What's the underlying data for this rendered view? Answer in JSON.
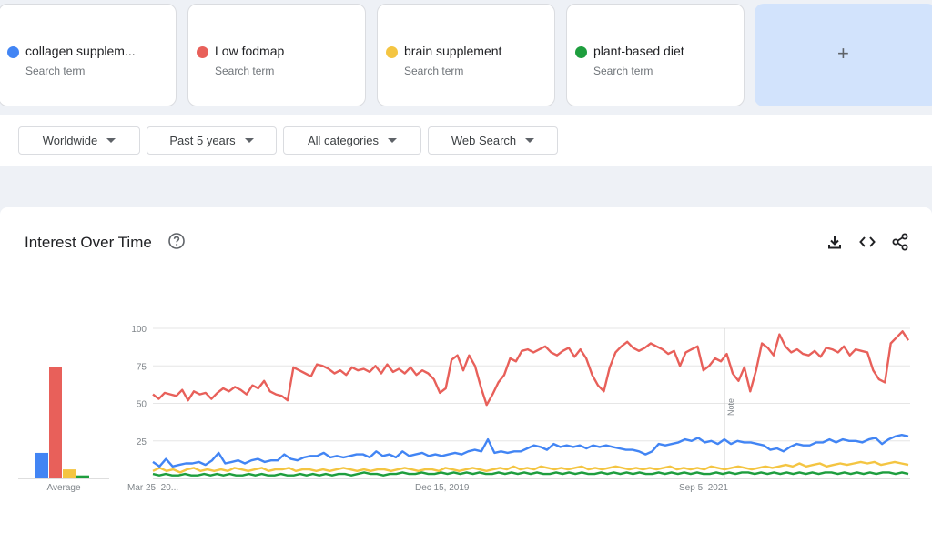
{
  "terms": [
    {
      "name": "collagen supplem...",
      "sub": "Search term",
      "color": "#4285f4"
    },
    {
      "name": "Low fodmap",
      "sub": "Search term",
      "color": "#e8605a"
    },
    {
      "name": "brain supplement",
      "sub": "Search term",
      "color": "#f4c542"
    },
    {
      "name": "plant-based diet",
      "sub": "Search term",
      "color": "#1e9e3e"
    }
  ],
  "add_term": {
    "label": "+"
  },
  "filters": {
    "region": "Worldwide",
    "time": "Past 5 years",
    "category": "All categories",
    "search_type": "Web Search"
  },
  "panel": {
    "title": "Interest Over Time",
    "icons": [
      "help-icon",
      "download-icon",
      "embed-icon",
      "share-icon"
    ]
  },
  "chart_data": {
    "type": "line",
    "y_ticks": [
      25,
      50,
      75,
      100
    ],
    "ylim": [
      0,
      100
    ],
    "x_tick_labels": [
      "Mar 25, 20...",
      "Dec 15, 2019",
      "Sep 5, 2021"
    ],
    "note_label": "Note",
    "grid": true,
    "average": {
      "label": "Average",
      "values": [
        17,
        74,
        6,
        2
      ],
      "colors": [
        "#4285f4",
        "#e8605a",
        "#f4c542",
        "#1e9e3e"
      ]
    },
    "series": [
      {
        "key": "collagen",
        "color": "#4285f4",
        "values": [
          11,
          8,
          13,
          8,
          9,
          10,
          10,
          11,
          9,
          12,
          17,
          10,
          11,
          12,
          10,
          12,
          13,
          11,
          12,
          12,
          16,
          13,
          12,
          14,
          15,
          15,
          17,
          14,
          15,
          14,
          15,
          16,
          16,
          14,
          18,
          15,
          16,
          14,
          18,
          15,
          16,
          17,
          15,
          16,
          15,
          16,
          17,
          16,
          18,
          19,
          18,
          26,
          17,
          18,
          17,
          18,
          18,
          20,
          22,
          21,
          19,
          23,
          21,
          22,
          21,
          22,
          20,
          22,
          21,
          22,
          21,
          20,
          19,
          19,
          18,
          16,
          18,
          23,
          22,
          23,
          24,
          26,
          25,
          27,
          24,
          25,
          23,
          26,
          23,
          25,
          24,
          24,
          23,
          22,
          19,
          20,
          18,
          21,
          23,
          22,
          22,
          24,
          24,
          26,
          24,
          26,
          25,
          25,
          24,
          26,
          27,
          23,
          26,
          28,
          29,
          28
        ]
      },
      {
        "key": "lowfodmap",
        "color": "#e8605a",
        "values": [
          56,
          53,
          57,
          56,
          55,
          59,
          52,
          58,
          56,
          57,
          53,
          57,
          60,
          58,
          61,
          59,
          56,
          62,
          60,
          65,
          58,
          56,
          55,
          52,
          74,
          72,
          70,
          68,
          76,
          75,
          73,
          70,
          72,
          69,
          74,
          72,
          73,
          71,
          75,
          70,
          76,
          71,
          73,
          70,
          74,
          69,
          72,
          70,
          66,
          57,
          60,
          79,
          82,
          72,
          82,
          75,
          61,
          49,
          56,
          64,
          69,
          80,
          78,
          85,
          86,
          84,
          86,
          88,
          84,
          82,
          85,
          87,
          81,
          86,
          80,
          69,
          62,
          58,
          74,
          84,
          88,
          91,
          87,
          85,
          87,
          90,
          88,
          86,
          83,
          85,
          75,
          84,
          86,
          88,
          72,
          75,
          80,
          78,
          83,
          70,
          65,
          74,
          58,
          72,
          90,
          87,
          82,
          96,
          88,
          84,
          86,
          83,
          82,
          85,
          81,
          87,
          86,
          84,
          88,
          82,
          86,
          85,
          84,
          72,
          66,
          64,
          90,
          94,
          98,
          92
        ]
      },
      {
        "key": "brain",
        "color": "#f4c542",
        "values": [
          5,
          7,
          5,
          6,
          4,
          6,
          7,
          5,
          6,
          5,
          6,
          5,
          7,
          6,
          5,
          6,
          7,
          5,
          6,
          6,
          7,
          5,
          6,
          6,
          5,
          6,
          5,
          6,
          7,
          6,
          5,
          6,
          5,
          6,
          6,
          5,
          6,
          7,
          6,
          5,
          6,
          6,
          5,
          7,
          6,
          5,
          6,
          7,
          6,
          5,
          6,
          7,
          6,
          8,
          6,
          7,
          6,
          8,
          7,
          6,
          7,
          6,
          7,
          8,
          6,
          7,
          6,
          7,
          8,
          7,
          6,
          7,
          6,
          7,
          6,
          7,
          8,
          6,
          7,
          6,
          7,
          6,
          8,
          7,
          6,
          7,
          8,
          7,
          6,
          7,
          8,
          7,
          8,
          9,
          8,
          10,
          8,
          9,
          10,
          8,
          9,
          10,
          9,
          10,
          11,
          10,
          11,
          9,
          10,
          11,
          10,
          9
        ]
      },
      {
        "key": "plant",
        "color": "#1e9e3e",
        "values": [
          3,
          2,
          3,
          2,
          2,
          3,
          2,
          2,
          3,
          2,
          3,
          2,
          3,
          2,
          2,
          3,
          2,
          3,
          2,
          2,
          3,
          2,
          2,
          3,
          2,
          3,
          2,
          3,
          2,
          3,
          3,
          2,
          3,
          4,
          3,
          3,
          2,
          3,
          3,
          4,
          3,
          3,
          4,
          3,
          3,
          4,
          3,
          4,
          3,
          4,
          3,
          4,
          3,
          3,
          4,
          3,
          4,
          3,
          4,
          3,
          4,
          3,
          3,
          4,
          3,
          4,
          3,
          4,
          3,
          3,
          4,
          3,
          4,
          3,
          4,
          3,
          4,
          3,
          3,
          4,
          3,
          4,
          3,
          4,
          3,
          4,
          3,
          3,
          4,
          3,
          4,
          3,
          4,
          4,
          3,
          4,
          3,
          4,
          3,
          4,
          3,
          4,
          3,
          4,
          3,
          4,
          4,
          3,
          4,
          3,
          4,
          3,
          4,
          3,
          4,
          4,
          3,
          4,
          3
        ]
      }
    ]
  }
}
